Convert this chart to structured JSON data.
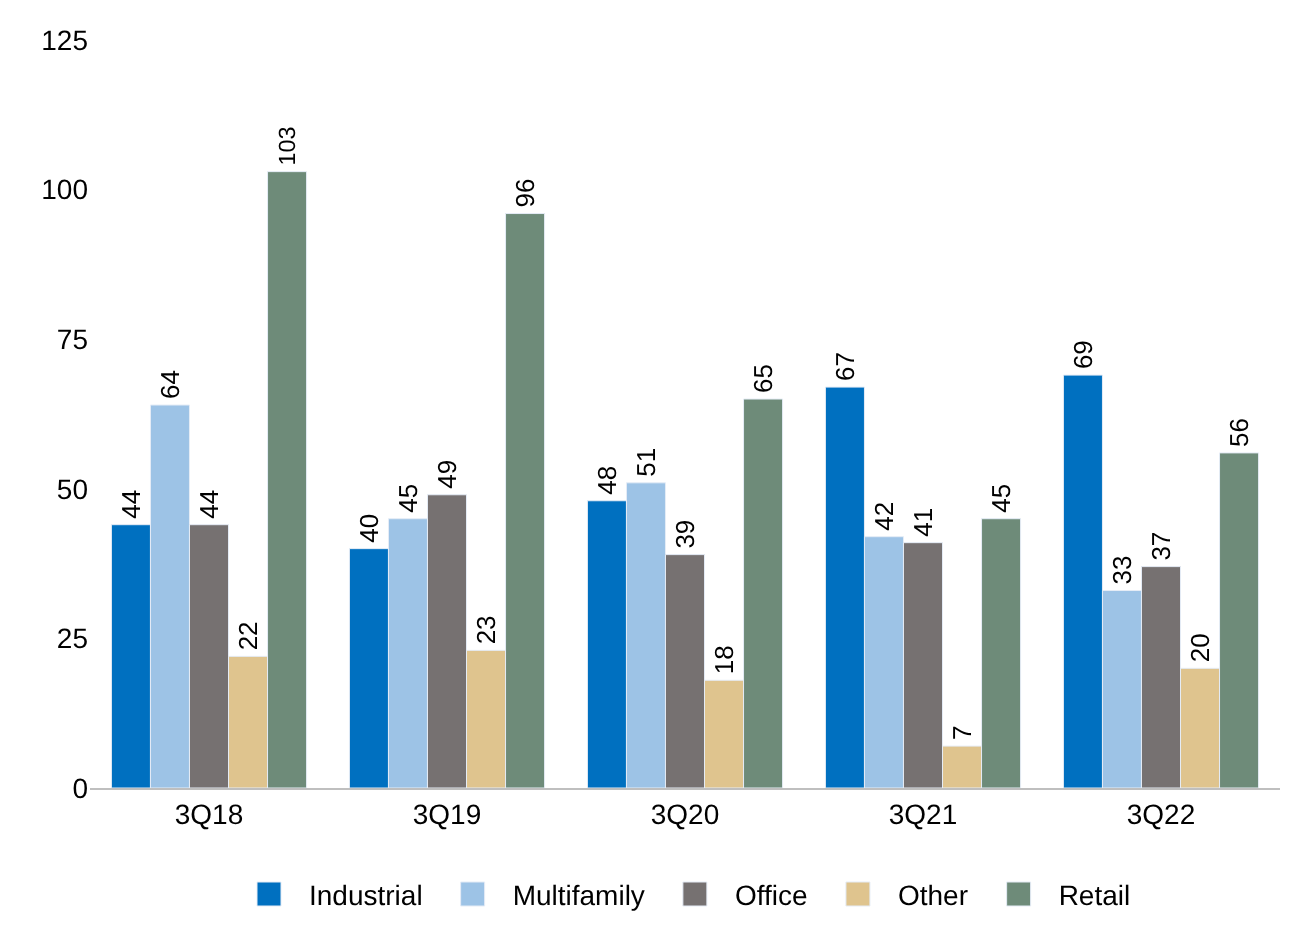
{
  "chart_data": {
    "type": "bar",
    "categories": [
      "3Q18",
      "3Q19",
      "3Q20",
      "3Q21",
      "3Q22"
    ],
    "series": [
      {
        "name": "Industrial",
        "color": "#0070c0",
        "values": [
          44,
          40,
          48,
          67,
          69
        ]
      },
      {
        "name": "Multifamily",
        "color": "#9dc3e6",
        "values": [
          64,
          45,
          51,
          42,
          33
        ]
      },
      {
        "name": "Office",
        "color": "#767171",
        "values": [
          44,
          49,
          39,
          41,
          37
        ]
      },
      {
        "name": "Other",
        "color": "#dfc48e",
        "values": [
          22,
          23,
          18,
          7,
          20
        ]
      },
      {
        "name": "Retail",
        "color": "#6e8b79",
        "values": [
          103,
          96,
          65,
          45,
          56
        ]
      }
    ],
    "ylim": [
      0,
      125
    ],
    "yticks": [
      0,
      25,
      50,
      75,
      100,
      125
    ],
    "legend": "bottom",
    "data_labels": true
  }
}
